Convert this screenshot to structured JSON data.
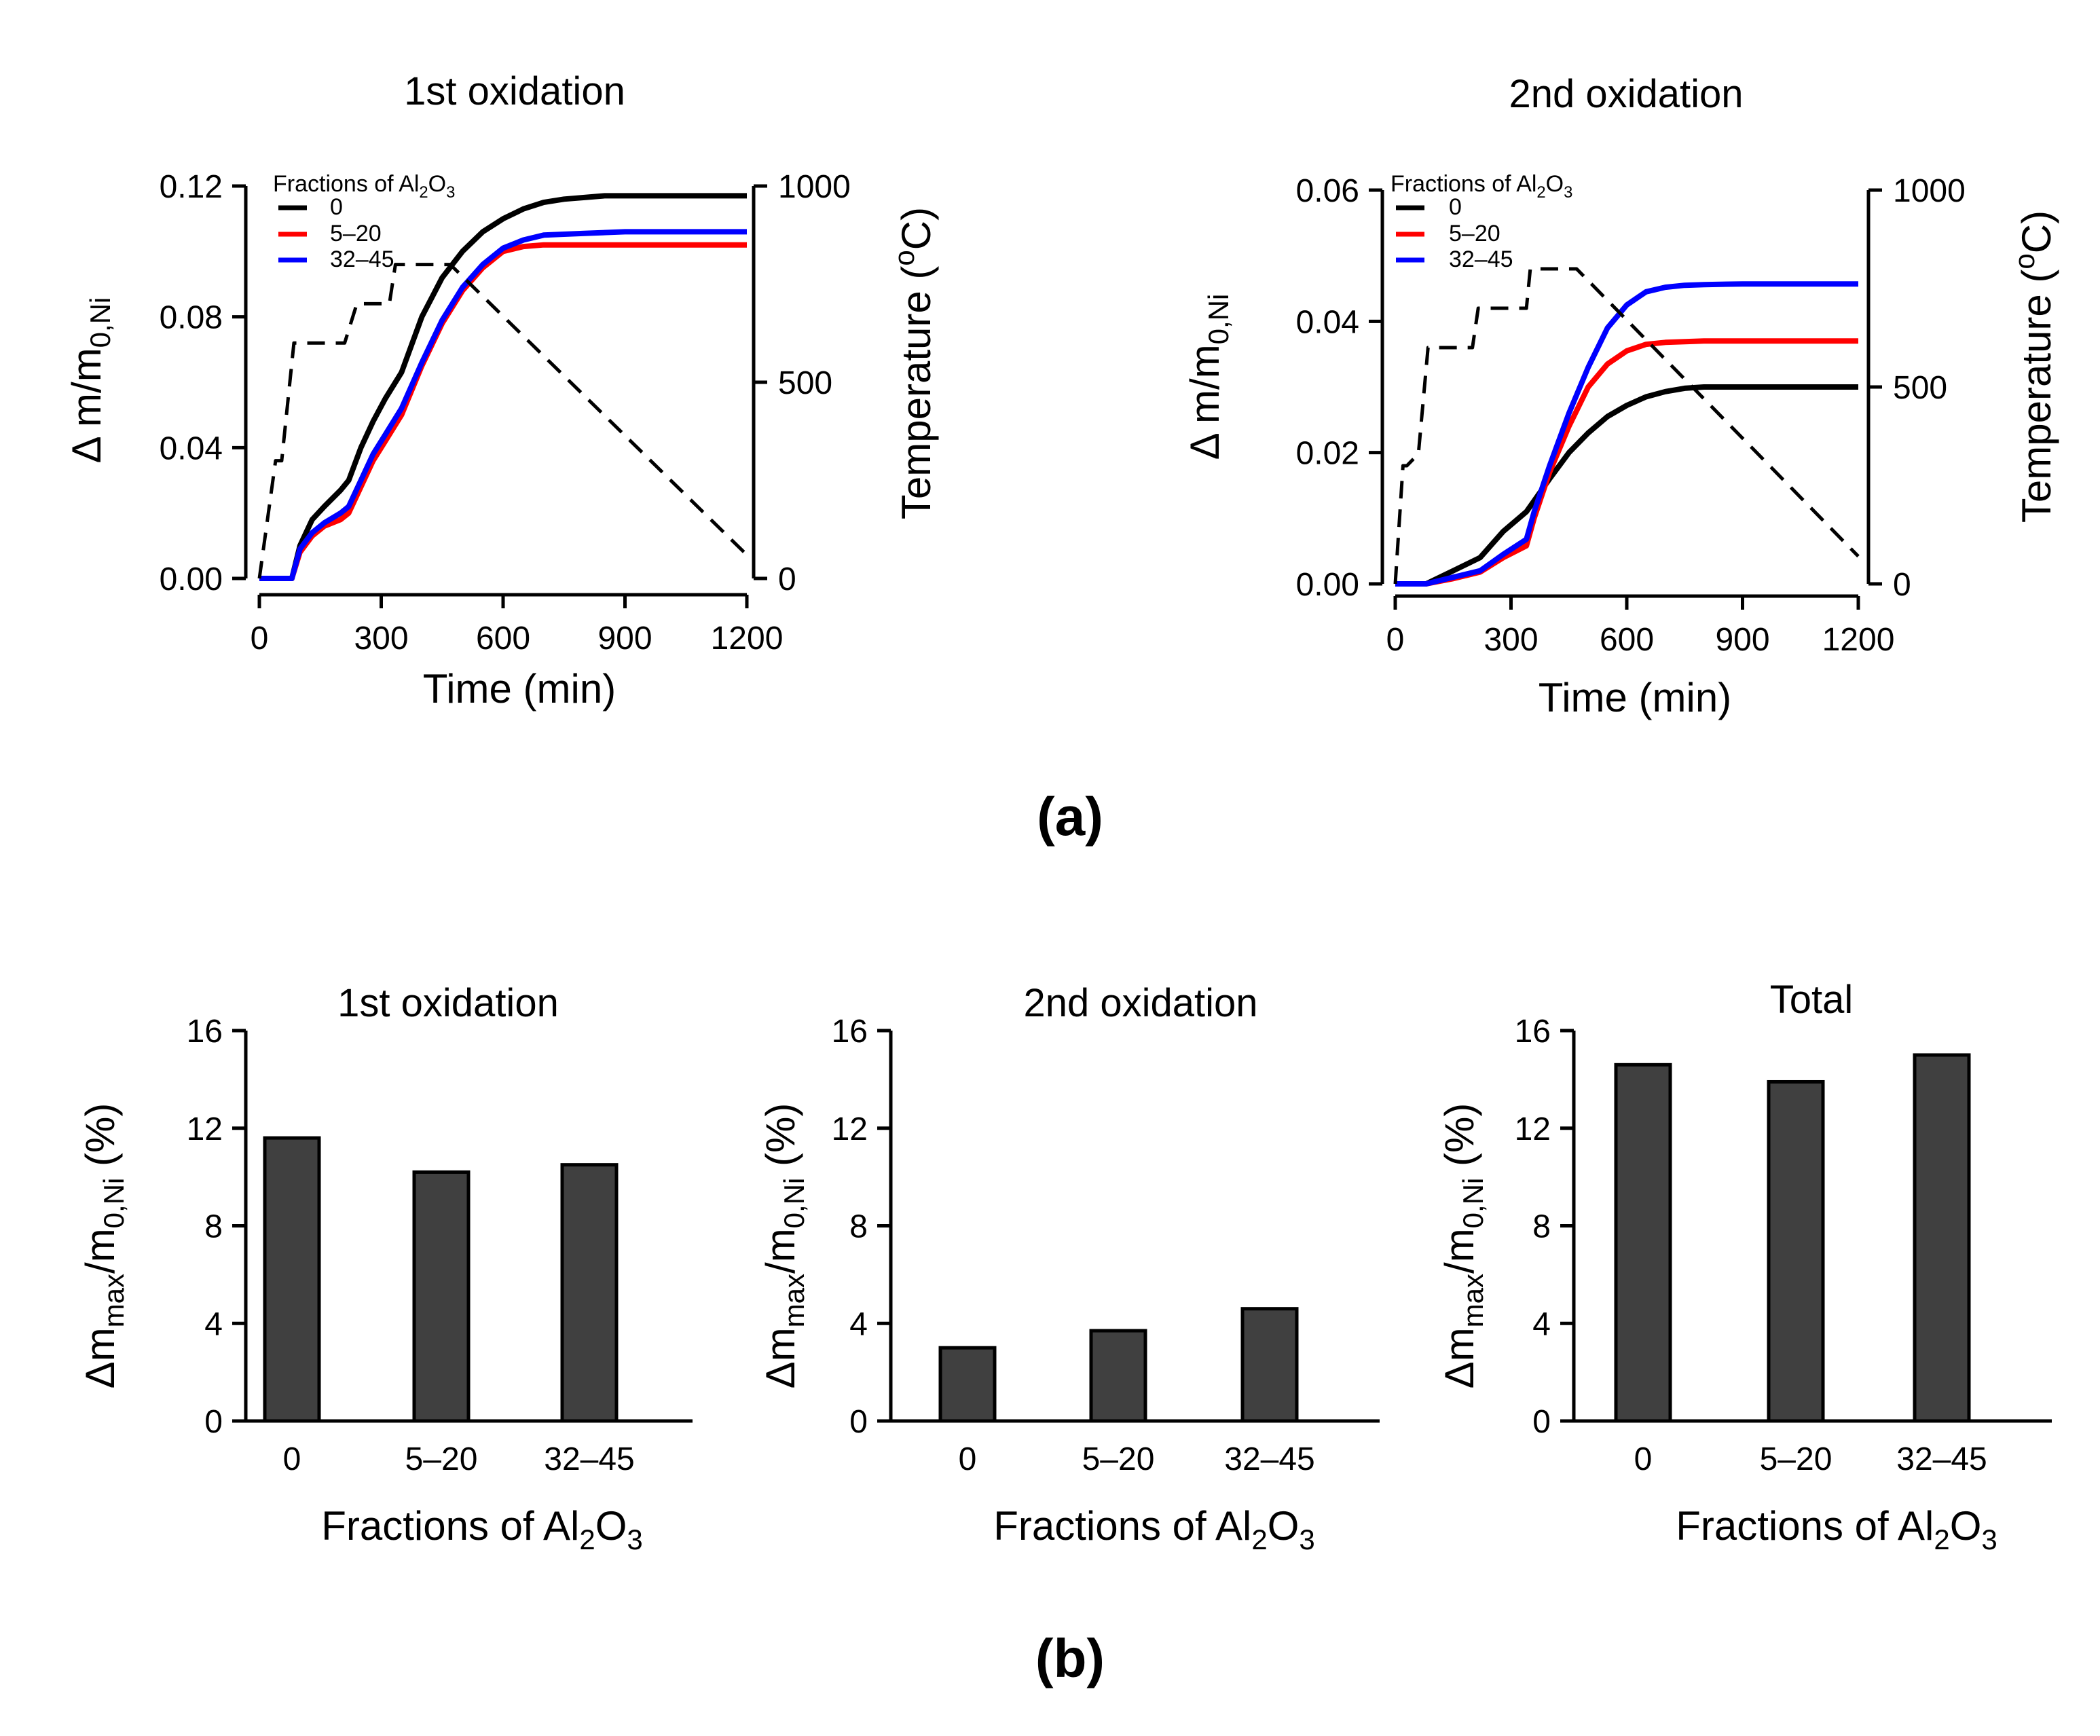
{
  "figure": {
    "panel_a_label": "(a)",
    "panel_b_label": "(b)"
  },
  "chart_data": [
    {
      "type": "line",
      "title": "1st oxidation",
      "xlabel": "Time (min)",
      "ylabel": "Δ m/m0,Ni",
      "ylabel_right": "Temperature (°C)",
      "xlim": [
        0,
        1200
      ],
      "ylim": [
        0,
        0.12
      ],
      "ylim_right": [
        0,
        1000
      ],
      "xticks": [
        0,
        300,
        600,
        900,
        1200
      ],
      "yticks": [
        "0.00",
        "0.04",
        "0.08",
        "0.12"
      ],
      "yticks_right": [
        0,
        500,
        1000
      ],
      "legend_title": "Fractions of Al2O3",
      "legend_position": "top-left",
      "series": [
        {
          "name": "0",
          "color": "#000000",
          "x": [
            0,
            80,
            100,
            130,
            160,
            200,
            220,
            250,
            280,
            310,
            350,
            400,
            450,
            500,
            550,
            600,
            650,
            700,
            750,
            800,
            850,
            900,
            1000,
            1100,
            1200
          ],
          "y": [
            0,
            0,
            0.01,
            0.018,
            0.022,
            0.027,
            0.03,
            0.04,
            0.048,
            0.055,
            0.063,
            0.08,
            0.092,
            0.1,
            0.106,
            0.11,
            0.113,
            0.115,
            0.116,
            0.1165,
            0.117,
            0.117,
            0.117,
            0.117,
            0.117
          ]
        },
        {
          "name": "5-20",
          "color": "#ff0000",
          "x": [
            0,
            80,
            100,
            130,
            160,
            200,
            220,
            250,
            280,
            310,
            350,
            400,
            450,
            500,
            550,
            600,
            650,
            700,
            800,
            900,
            1000,
            1100,
            1200
          ],
          "y": [
            0,
            0,
            0.008,
            0.013,
            0.016,
            0.018,
            0.02,
            0.028,
            0.036,
            0.042,
            0.05,
            0.065,
            0.078,
            0.088,
            0.095,
            0.1,
            0.1015,
            0.102,
            0.102,
            0.102,
            0.102,
            0.102,
            0.102
          ]
        },
        {
          "name": "32-45",
          "color": "#0000ff",
          "x": [
            0,
            80,
            100,
            130,
            160,
            200,
            220,
            250,
            280,
            310,
            350,
            400,
            450,
            500,
            550,
            600,
            650,
            700,
            800,
            900,
            1000,
            1100,
            1200
          ],
          "y": [
            0,
            0,
            0.009,
            0.014,
            0.017,
            0.02,
            0.022,
            0.03,
            0.038,
            0.044,
            0.052,
            0.066,
            0.079,
            0.089,
            0.096,
            0.101,
            0.1035,
            0.105,
            0.1055,
            0.106,
            0.106,
            0.106,
            0.106
          ]
        },
        {
          "name": "Temperature",
          "color": "#000000",
          "dashed": true,
          "axis": "right",
          "x": [
            0,
            40,
            55,
            85,
            90,
            200,
            210,
            240,
            250,
            320,
            335,
            470,
            1200
          ],
          "y": [
            0,
            300,
            300,
            600,
            600,
            600,
            600,
            700,
            700,
            700,
            800,
            800,
            60
          ]
        }
      ]
    },
    {
      "type": "line",
      "title": "2nd oxidation",
      "xlabel": "Time (min)",
      "ylabel": "Δ m/m0,Ni",
      "ylabel_right": "Temperature (°C)",
      "xlim": [
        0,
        1200
      ],
      "ylim": [
        0,
        0.06
      ],
      "ylim_right": [
        0,
        1000
      ],
      "xticks": [
        0,
        300,
        600,
        900,
        1200
      ],
      "yticks": [
        "0.00",
        "0.02",
        "0.04",
        "0.06"
      ],
      "yticks_right": [
        0,
        500,
        1000
      ],
      "legend_title": "Fractions of Al2O3",
      "legend_position": "top-left",
      "series": [
        {
          "name": "0",
          "color": "#000000",
          "x": [
            0,
            80,
            150,
            220,
            280,
            340,
            400,
            450,
            500,
            550,
            600,
            650,
            700,
            750,
            800,
            850,
            900,
            1000,
            1100,
            1200
          ],
          "y": [
            0,
            0,
            0.002,
            0.004,
            0.008,
            0.011,
            0.016,
            0.02,
            0.023,
            0.0255,
            0.0272,
            0.0285,
            0.0293,
            0.0298,
            0.03,
            0.03,
            0.03,
            0.03,
            0.03,
            0.03
          ]
        },
        {
          "name": "5-20",
          "color": "#ff0000",
          "x": [
            0,
            80,
            150,
            220,
            280,
            340,
            360,
            400,
            450,
            500,
            550,
            600,
            650,
            700,
            800,
            900,
            1000,
            1100,
            1200
          ],
          "y": [
            0,
            0,
            0.0008,
            0.0018,
            0.004,
            0.0058,
            0.01,
            0.017,
            0.024,
            0.03,
            0.0335,
            0.0355,
            0.0365,
            0.0368,
            0.037,
            0.037,
            0.037,
            0.037,
            0.037
          ]
        },
        {
          "name": "32-45",
          "color": "#0000ff",
          "x": [
            0,
            80,
            150,
            220,
            280,
            340,
            360,
            400,
            450,
            500,
            550,
            600,
            650,
            700,
            750,
            800,
            900,
            1000,
            1100,
            1200
          ],
          "y": [
            0,
            0,
            0.001,
            0.002,
            0.0045,
            0.0068,
            0.011,
            0.018,
            0.026,
            0.033,
            0.039,
            0.0425,
            0.0445,
            0.0452,
            0.0455,
            0.0456,
            0.0457,
            0.0457,
            0.0457,
            0.0457
          ]
        },
        {
          "name": "Temperature",
          "color": "#000000",
          "dashed": true,
          "axis": "right",
          "x": [
            0,
            20,
            30,
            60,
            85,
            90,
            200,
            215,
            230,
            340,
            350,
            470,
            1200
          ],
          "y": [
            0,
            300,
            300,
            330,
            600,
            600,
            600,
            700,
            700,
            700,
            800,
            800,
            70
          ]
        }
      ]
    },
    {
      "type": "bar",
      "title": "1st oxidation",
      "xlabel": "Fractions of Al2O3",
      "ylabel": "Δmmax/m0,Ni (%)",
      "categories": [
        "0",
        "5–20",
        "32–45"
      ],
      "values": [
        11.6,
        10.2,
        10.5
      ],
      "ylim": [
        0,
        16
      ],
      "yticks": [
        0,
        4,
        8,
        12,
        16
      ],
      "bar_color": "#404040"
    },
    {
      "type": "bar",
      "title": "2nd oxidation",
      "xlabel": "Fractions of Al2O3",
      "ylabel": "Δmmax/m0,Ni (%)",
      "categories": [
        "0",
        "5–20",
        "32–45"
      ],
      "values": [
        3.0,
        3.7,
        4.6
      ],
      "ylim": [
        0,
        16
      ],
      "yticks": [
        0,
        4,
        8,
        12,
        16
      ],
      "bar_color": "#404040"
    },
    {
      "type": "bar",
      "title": "Total",
      "xlabel": "Fractions of Al2O3",
      "ylabel": "Δmmax/m0,Ni (%)",
      "categories": [
        "0",
        "5–20",
        "32–45"
      ],
      "values": [
        14.6,
        13.9,
        15.0
      ],
      "ylim": [
        0,
        16
      ],
      "yticks": [
        0,
        4,
        8,
        12,
        16
      ],
      "bar_color": "#404040"
    }
  ]
}
